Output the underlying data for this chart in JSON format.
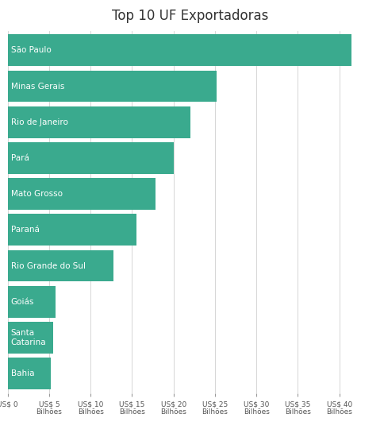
{
  "title": "Top 10 UF Exportadoras",
  "categories": [
    "São Paulo",
    "Minas Gerais",
    "Rio de Janeiro",
    "Pará",
    "Mato Grosso",
    "Paraná",
    "Rio Grande do Sul",
    "Goiás",
    "Santa\nCatarina",
    "Bahia"
  ],
  "values": [
    41.5,
    25.2,
    22.0,
    20.0,
    17.8,
    15.5,
    12.8,
    5.8,
    5.5,
    5.2
  ],
  "bar_color": "#3aaa8e",
  "background_color": "#ffffff",
  "xlim": [
    0,
    44
  ],
  "xticks": [
    0,
    5,
    10,
    15,
    20,
    25,
    30,
    35,
    40
  ],
  "xtick_labels": [
    "US$ 0",
    "US$ 5\nBilhões",
    "US$ 10\nBilhões",
    "US$ 15\nBilhões",
    "US$ 20\nBilhões",
    "US$ 25\nBilhões",
    "US$ 30\nBilhões",
    "US$ 35\nBilhões",
    "US$ 40\nBilhões"
  ],
  "grid_color": "#d0d0d0",
  "label_color": "#ffffff",
  "label_fontsize": 7.5,
  "title_fontsize": 12,
  "bar_height": 0.88,
  "title_color": "#333333",
  "tick_label_color": "#555555",
  "tick_label_fontsize": 6.5
}
